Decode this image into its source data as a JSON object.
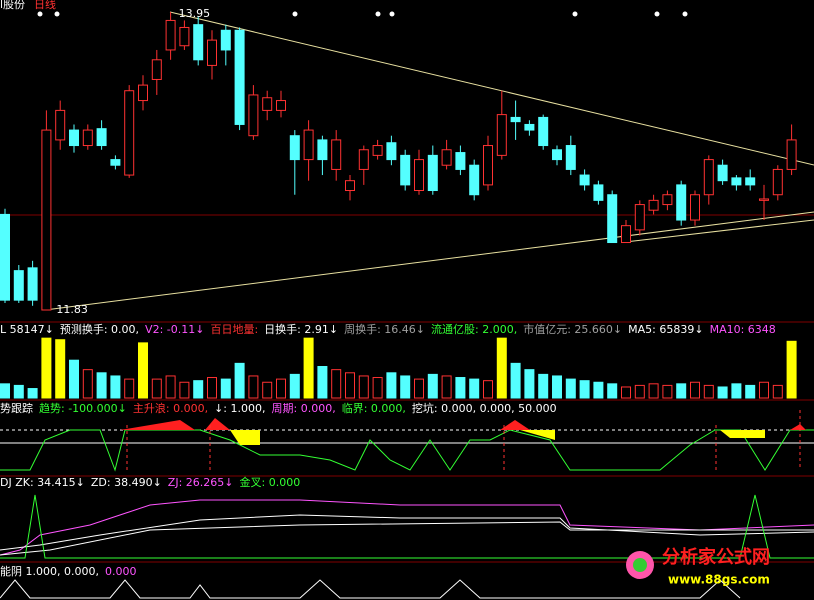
{
  "header": {
    "stock": "l股份",
    "period": "日线"
  },
  "price_chart": {
    "type": "candlestick",
    "high": 13.95,
    "low": 11.83,
    "ylim": [
      11.83,
      13.95
    ],
    "colors": {
      "up": "#ff3232",
      "down": "#54ffff",
      "highlight": "#ffff00"
    },
    "candles": [
      [
        12.51,
        11.9,
        12.55,
        11.88
      ],
      [
        12.11,
        11.9,
        12.15,
        11.88
      ],
      [
        12.13,
        11.9,
        12.18,
        11.86
      ],
      [
        11.83,
        13.11,
        13.25,
        11.83
      ],
      [
        13.04,
        13.25,
        13.32,
        12.97
      ],
      [
        13.11,
        13.0,
        13.15,
        12.95
      ],
      [
        13.0,
        13.11,
        13.15,
        12.97
      ],
      [
        13.12,
        13.0,
        13.18,
        12.97
      ],
      [
        12.9,
        12.86,
        12.93,
        12.83
      ],
      [
        12.79,
        13.39,
        13.43,
        12.77
      ],
      [
        13.32,
        13.43,
        13.5,
        13.25
      ],
      [
        13.47,
        13.61,
        13.68,
        13.36
      ],
      [
        13.68,
        13.89,
        13.95,
        13.61
      ],
      [
        13.71,
        13.84,
        13.89,
        13.68
      ],
      [
        13.86,
        13.61,
        13.92,
        13.57
      ],
      [
        13.57,
        13.75,
        13.82,
        13.47
      ],
      [
        13.82,
        13.68,
        13.86,
        13.57
      ],
      [
        13.82,
        13.15,
        13.84,
        13.11
      ],
      [
        13.07,
        13.36,
        13.43,
        13.04
      ],
      [
        13.25,
        13.34,
        13.39,
        13.18
      ],
      [
        13.25,
        13.32,
        13.39,
        13.2
      ],
      [
        13.07,
        12.9,
        13.11,
        12.65
      ],
      [
        12.9,
        13.11,
        13.18,
        12.75
      ],
      [
        13.04,
        12.9,
        13.07,
        12.79
      ],
      [
        12.83,
        13.04,
        13.11,
        12.75
      ],
      [
        12.68,
        12.75,
        12.79,
        12.61
      ],
      [
        12.83,
        12.97,
        13.0,
        12.72
      ],
      [
        12.93,
        13.0,
        13.04,
        12.9
      ],
      [
        13.02,
        12.9,
        13.07,
        12.86
      ],
      [
        12.93,
        12.72,
        12.97,
        12.68
      ],
      [
        12.68,
        12.9,
        12.97,
        12.65
      ],
      [
        12.93,
        12.68,
        13.0,
        12.65
      ],
      [
        12.86,
        12.97,
        13.04,
        12.83
      ],
      [
        12.95,
        12.83,
        13.0,
        12.79
      ],
      [
        12.86,
        12.65,
        12.9,
        12.61
      ],
      [
        12.72,
        13.0,
        13.07,
        12.68
      ],
      [
        12.93,
        13.22,
        13.39,
        12.9
      ],
      [
        13.2,
        13.17,
        13.32,
        13.04
      ],
      [
        13.15,
        13.11,
        13.18,
        13.07
      ],
      [
        13.2,
        13.0,
        13.22,
        12.97
      ],
      [
        12.97,
        12.9,
        13.0,
        12.86
      ],
      [
        13.0,
        12.83,
        13.07,
        12.79
      ],
      [
        12.79,
        12.72,
        12.83,
        12.68
      ],
      [
        12.72,
        12.61,
        12.75,
        12.58
      ],
      [
        12.65,
        12.31,
        12.68,
        12.31
      ],
      [
        12.31,
        12.43,
        12.47,
        12.31
      ],
      [
        12.4,
        12.58,
        12.61,
        12.36
      ],
      [
        12.54,
        12.61,
        12.65,
        12.51
      ],
      [
        12.58,
        12.65,
        12.68,
        12.54
      ],
      [
        12.72,
        12.47,
        12.75,
        12.43
      ],
      [
        12.47,
        12.65,
        12.68,
        12.43
      ],
      [
        12.65,
        12.9,
        12.93,
        12.58
      ],
      [
        12.86,
        12.75,
        12.9,
        12.72
      ],
      [
        12.77,
        12.72,
        12.79,
        12.68
      ],
      [
        12.77,
        12.72,
        12.83,
        12.68
      ],
      [
        12.61,
        12.62,
        12.72,
        12.47
      ],
      [
        12.65,
        12.83,
        12.86,
        12.61
      ],
      [
        12.83,
        13.04,
        13.15,
        12.79
      ]
    ]
  },
  "volume_panel": {
    "vlim": [
      0,
      200000
    ],
    "highlight": [
      3,
      4,
      10,
      22,
      36,
      57
    ],
    "volumes": [
      45000,
      40000,
      30000,
      190000,
      185000,
      120000,
      90000,
      80000,
      70000,
      60000,
      175000,
      60000,
      70000,
      50000,
      55000,
      65000,
      60000,
      110000,
      70000,
      50000,
      60000,
      75000,
      190000,
      100000,
      90000,
      80000,
      70000,
      65000,
      80000,
      70000,
      60000,
      75000,
      70000,
      65000,
      60000,
      55000,
      190000,
      110000,
      90000,
      75000,
      70000,
      60000,
      55000,
      50000,
      45000,
      35000,
      40000,
      45000,
      40000,
      45000,
      50000,
      40000,
      35000,
      45000,
      40000,
      50000,
      40000,
      180000
    ],
    "items": [
      {
        "text": "L 58147↓",
        "color": "#ffffff"
      },
      {
        "text": "预测换手: 0.00,",
        "color": "#ffffff"
      },
      {
        "text": "V2: -0.11↓",
        "color": "#ff55ff"
      },
      {
        "text": "百日地量:",
        "color": "#ff3232"
      },
      {
        "text": "日换手: 2.91↓",
        "color": "#ffffff"
      },
      {
        "text": "周换手: 16.46↓",
        "color": "#a0a0a0"
      },
      {
        "text": "流通亿股: 2.000,",
        "color": "#33ff33"
      },
      {
        "text": "市值亿元: 25.660↓",
        "color": "#a0a0a0"
      },
      {
        "text": "MA5: 65839↓",
        "color": "#ffffff"
      },
      {
        "text": "MA10: 6348",
        "color": "#ff55ff"
      }
    ]
  },
  "trend_panel": {
    "items": [
      {
        "text": "势跟踪",
        "color": "#ffffff"
      },
      {
        "text": "趋势: -100.000↓",
        "color": "#33ff33"
      },
      {
        "text": "主升浪: 0.000,",
        "color": "#ff3232"
      },
      {
        "text": "↓: 1.000,",
        "color": "#ffffff"
      },
      {
        "text": "周期: 0.000,",
        "color": "#ff55ff"
      },
      {
        "text": "临界: 0.000,",
        "color": "#33ff33"
      },
      {
        "text": "挖坑: 0.000, 0.000, 50.000",
        "color": "#ffffff"
      }
    ]
  },
  "dj_panel": {
    "items": [
      {
        "text": "DJ ZK: 34.415↓",
        "color": "#ffffff"
      },
      {
        "text": "ZD: 38.490↓",
        "color": "#ffffff"
      },
      {
        "text": "ZJ: 26.265↓",
        "color": "#ff55ff"
      },
      {
        "text": "金叉: 0.000",
        "color": "#33ff33"
      }
    ]
  },
  "yin_panel": {
    "items": [
      {
        "text": "能阴 1.000, 0.000,",
        "color": "#ffffff"
      },
      {
        "text": "0.000",
        "color": "#ff55ff"
      }
    ]
  },
  "watermark": {
    "name": "分析家公式网",
    "url": "www.88gs.com"
  }
}
